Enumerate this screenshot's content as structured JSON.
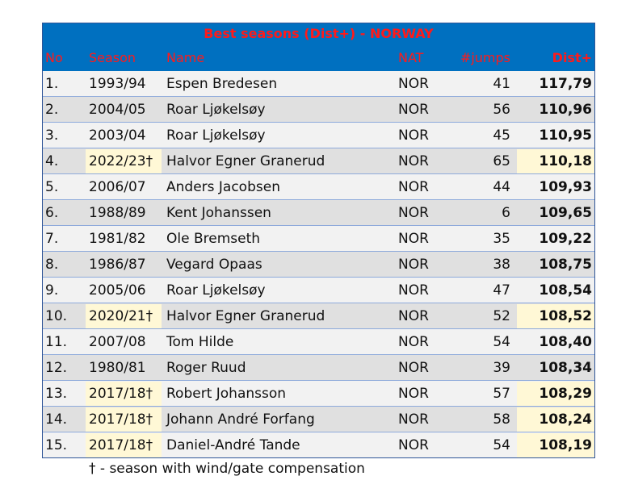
{
  "table": {
    "title": "Best seasons (Dist+) - NORWAY",
    "headers": [
      "No",
      "Season",
      "Name",
      "NAT",
      "#jumps",
      "Dist+"
    ],
    "highlight_color": "#fff8d6",
    "rows": [
      {
        "no": "1.",
        "season": "1993/94",
        "name": "Espen Bredesen",
        "nat": "NOR",
        "jumps": 41,
        "dist": "117,79"
      },
      {
        "no": "2.",
        "season": "2004/05",
        "name": "Roar Ljøkelsøy",
        "nat": "NOR",
        "jumps": 56,
        "dist": "110,96"
      },
      {
        "no": "3.",
        "season": "2003/04",
        "name": "Roar Ljøkelsøy",
        "nat": "NOR",
        "jumps": 45,
        "dist": "110,95"
      },
      {
        "no": "4.",
        "season": "2022/23†",
        "name": "Halvor Egner Granerud",
        "nat": "NOR",
        "jumps": 65,
        "dist": "110,18",
        "highlight": true
      },
      {
        "no": "5.",
        "season": "2006/07",
        "name": "Anders Jacobsen",
        "nat": "NOR",
        "jumps": 44,
        "dist": "109,93"
      },
      {
        "no": "6.",
        "season": "1988/89",
        "name": "Kent Johanssen",
        "nat": "NOR",
        "jumps": 6,
        "dist": "109,65"
      },
      {
        "no": "7.",
        "season": "1981/82",
        "name": "Ole Bremseth",
        "nat": "NOR",
        "jumps": 35,
        "dist": "109,22"
      },
      {
        "no": "8.",
        "season": "1986/87",
        "name": "Vegard Opaas",
        "nat": "NOR",
        "jumps": 38,
        "dist": "108,75"
      },
      {
        "no": "9.",
        "season": "2005/06",
        "name": "Roar Ljøkelsøy",
        "nat": "NOR",
        "jumps": 47,
        "dist": "108,54"
      },
      {
        "no": "10.",
        "season": "2020/21†",
        "name": "Halvor Egner Granerud",
        "nat": "NOR",
        "jumps": 52,
        "dist": "108,52",
        "highlight": true
      },
      {
        "no": "11.",
        "season": "2007/08",
        "name": "Tom Hilde",
        "nat": "NOR",
        "jumps": 54,
        "dist": "108,40"
      },
      {
        "no": "12.",
        "season": "1980/81",
        "name": "Roger Ruud",
        "nat": "NOR",
        "jumps": 39,
        "dist": "108,34"
      },
      {
        "no": "13.",
        "season": "2017/18†",
        "name": "Robert Johansson",
        "nat": "NOR",
        "jumps": 57,
        "dist": "108,29",
        "highlight": true
      },
      {
        "no": "14.",
        "season": "2017/18†",
        "name": "Johann André Forfang",
        "nat": "NOR",
        "jumps": 58,
        "dist": "108,24",
        "highlight": true
      },
      {
        "no": "15.",
        "season": "2017/18†",
        "name": "Daniel-André Tande",
        "nat": "NOR",
        "jumps": 54,
        "dist": "108,19",
        "highlight": true
      }
    ],
    "footnote": "† - season with wind/gate compensation"
  }
}
